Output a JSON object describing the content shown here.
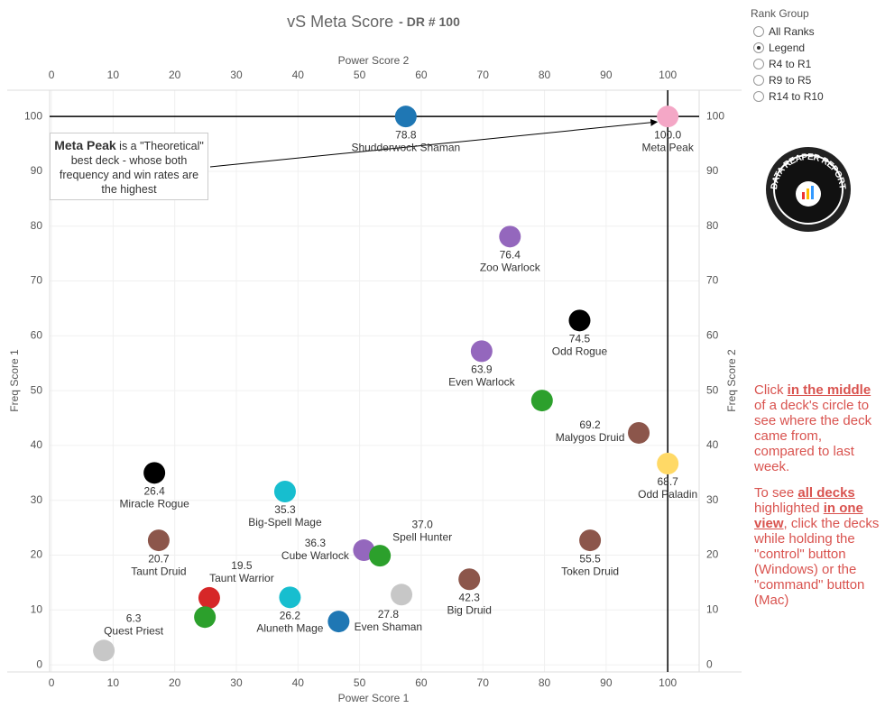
{
  "chart_data": {
    "type": "scatter",
    "title": "vS Meta Score",
    "subtitle": "- DR # 100",
    "x_label": "Power Score 1",
    "x2_label": "Power Score 2",
    "y_label": "Freq Score 1",
    "y2_label": "Freq Score 2",
    "xlim": [
      -0.3,
      105.1
    ],
    "ylim": [
      -1.3,
      104.8
    ],
    "xticks": [
      0,
      10,
      20,
      30,
      40,
      50,
      60,
      70,
      80,
      90,
      100
    ],
    "yticks": [
      0,
      10,
      20,
      30,
      40,
      50,
      60,
      70,
      80,
      90,
      100
    ],
    "grid": true,
    "reference_lines": {
      "x": 100,
      "y": 100
    },
    "names": [
      "Shudderwock Shaman",
      "Meta Peak",
      "Zoo Warlock",
      "Odd Rogue",
      "Even Warlock",
      null,
      "Malygos Druid",
      "Odd Paladin",
      "Miracle Rogue",
      "Big-Spell Mage",
      "Taunt Druid",
      "Token Druid",
      "Cube Warlock",
      "Spell Hunter",
      "Big Druid",
      "Taunt Warrior",
      "Aluneth Mage",
      null,
      "Even Shaman",
      null,
      "Quest Priest"
    ],
    "scores": [
      "78.8",
      "100.0",
      "76.4",
      "74.5",
      "63.9",
      null,
      "69.2",
      "68.7",
      "26.4",
      "35.3",
      "20.7",
      "55.5",
      "36.3",
      "37.0",
      "42.3",
      "19.5",
      "26.2",
      null,
      "27.8",
      null,
      "6.3"
    ],
    "x": [
      57.5,
      100,
      74.4,
      85.7,
      69.8,
      79.6,
      95.3,
      100,
      16.7,
      37.9,
      17.4,
      87.4,
      50.7,
      53.3,
      67.8,
      25.6,
      38.7,
      56.8,
      46.6,
      24.9,
      8.5
    ],
    "values": [
      100,
      100,
      78.1,
      62.8,
      57.2,
      48.2,
      42.3,
      36.7,
      35.0,
      31.6,
      22.7,
      22.7,
      20.9,
      19.9,
      15.6,
      12.2,
      12.3,
      12.8,
      7.9,
      8.7,
      2.6
    ],
    "colors": [
      "#1f77b4",
      "#f4a7c6",
      "#9467bd",
      "#000000",
      "#9467bd",
      "#2ca02c",
      "#8c564b",
      "#ffd966",
      "#000000",
      "#17becf",
      "#8c564b",
      "#8c564b",
      "#9467bd",
      "#2ca02c",
      "#8c564b",
      "#d62728",
      "#17becf",
      "#c7c7c7",
      "#1f77b4",
      "#2ca02c",
      "#c7c7c7"
    ],
    "annotation": {
      "bold": "Meta Peak",
      "text": " is a \"Theoretical\" best deck - whose both frequency and win rates are the highest"
    }
  },
  "filter": {
    "title": "Rank Group",
    "options": [
      "All Ranks",
      "Legend",
      "R4 to R1",
      "R9 to R5",
      "R14 to R10"
    ],
    "selected": 1
  },
  "logo": "DATA REAPER REPORT",
  "help": [
    [
      {
        "t": "Click "
      },
      {
        "t": "in the middle",
        "u": true
      },
      {
        "t": " of a deck's circle to see where the deck came from, compared to last week."
      }
    ],
    [
      {
        "t": "To see "
      },
      {
        "t": "all decks",
        "u": true
      },
      {
        "t": " highlighted "
      },
      {
        "t": "in one view",
        "u": true
      },
      {
        "t": ", click the decks while holding the \"control\" button (Windows) or the \"command\" button (Mac)"
      }
    ]
  ]
}
